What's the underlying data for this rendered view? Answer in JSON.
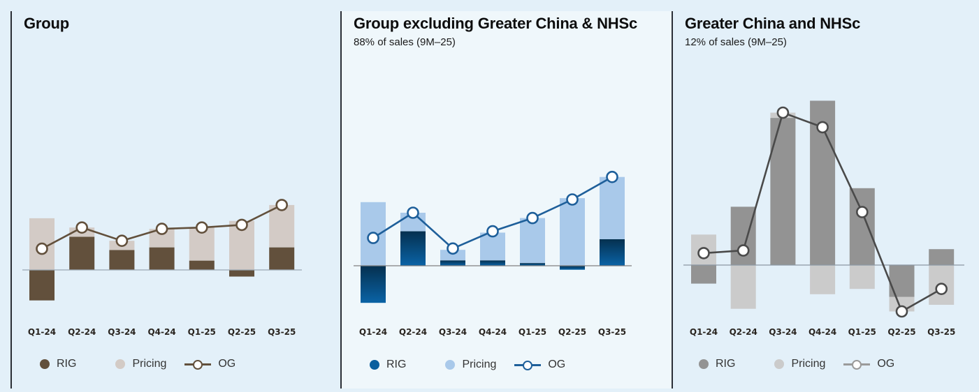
{
  "panels": [
    {
      "id": "group",
      "title": "Group",
      "subtitle": "",
      "colors": {
        "rig": "#62503c",
        "pricing": "#d3cbc6",
        "og": "#62503c",
        "baseline": "#9aa8b4"
      }
    },
    {
      "id": "group-ex-gc",
      "title": "Group excluding Greater China & NHSc",
      "subtitle": "88% of sales (9M–25)",
      "colors": {
        "rig": "#0a5f9e",
        "rig_dark": "#05304f",
        "pricing": "#a9c9ea",
        "og": "#1e5f9a",
        "baseline": "#808080"
      }
    },
    {
      "id": "gc-nhsc",
      "title": "Greater China and NHSc",
      "subtitle": "12% of sales (9M–25)",
      "colors": {
        "rig": "#939393",
        "pricing": "#cbcbcb",
        "og": "#4a4a4a",
        "baseline": "#8a97a3"
      }
    }
  ],
  "legend": {
    "rig": "RIG",
    "pricing": "Pricing",
    "og": "OG"
  },
  "chart_data": [
    {
      "type": "bar",
      "title": "Group",
      "subtitle": "",
      "categories": [
        "Q1-24",
        "Q2-24",
        "Q3-24",
        "Q4-24",
        "Q1-25",
        "Q2-25",
        "Q3-25"
      ],
      "series": [
        {
          "name": "RIG",
          "kind": "bar",
          "values": [
            -2.3,
            2.5,
            1.5,
            1.7,
            0.7,
            -0.5,
            1.7
          ]
        },
        {
          "name": "Pricing",
          "kind": "bar",
          "values": [
            3.9,
            0.7,
            0.7,
            1.4,
            2.5,
            3.7,
            3.2
          ]
        },
        {
          "name": "OG",
          "kind": "line",
          "values": [
            1.6,
            3.2,
            2.2,
            3.1,
            3.2,
            3.4,
            4.9
          ]
        }
      ],
      "xlabel": "",
      "ylabel": "",
      "grid": false,
      "legend_position": "bottom",
      "note": "No y-axis scale shown; values estimated in percentage points (approx. 19px per 1%)"
    },
    {
      "type": "bar",
      "title": "Group excluding Greater China & NHSc",
      "subtitle": "88% of sales (9M–25)",
      "categories": [
        "Q1-24",
        "Q2-24",
        "Q3-24",
        "Q4-24",
        "Q1-25",
        "Q2-25",
        "Q3-25"
      ],
      "series": [
        {
          "name": "RIG",
          "kind": "bar",
          "values": [
            -2.8,
            2.6,
            0.4,
            0.4,
            0.2,
            -0.3,
            2.0
          ]
        },
        {
          "name": "Pricing",
          "kind": "bar",
          "values": [
            4.8,
            1.4,
            0.8,
            2.1,
            3.4,
            5.1,
            4.7
          ]
        },
        {
          "name": "OG",
          "kind": "line",
          "values": [
            2.1,
            4.0,
            1.3,
            2.6,
            3.6,
            5.0,
            6.7
          ]
        }
      ],
      "xlabel": "",
      "ylabel": "",
      "grid": false,
      "legend_position": "bottom",
      "note": "No y-axis scale shown; values estimated in percentage points (approx. 19px per 1%)"
    },
    {
      "type": "bar",
      "title": "Greater China and NHSc",
      "subtitle": "12% of sales (9M–25)",
      "categories": [
        "Q1-24",
        "Q2-24",
        "Q3-24",
        "Q4-24",
        "Q1-25",
        "Q2-25",
        "Q3-25"
      ],
      "series": [
        {
          "name": "RIG",
          "kind": "bar",
          "values": [
            -1.4,
            4.4,
            11.1,
            12.4,
            5.8,
            -2.4,
            1.2
          ]
        },
        {
          "name": "Pricing",
          "kind": "bar",
          "values": [
            2.3,
            -3.3,
            0.4,
            -2.2,
            -1.8,
            -1.1,
            -3.0
          ]
        },
        {
          "name": "OG",
          "kind": "line",
          "values": [
            0.9,
            1.1,
            11.5,
            10.4,
            4.0,
            -3.5,
            -1.8
          ]
        }
      ],
      "xlabel": "",
      "ylabel": "",
      "grid": false,
      "legend_position": "bottom",
      "note": "No y-axis scale shown; values estimated in percentage points (approx. 19px per 1%)"
    }
  ]
}
